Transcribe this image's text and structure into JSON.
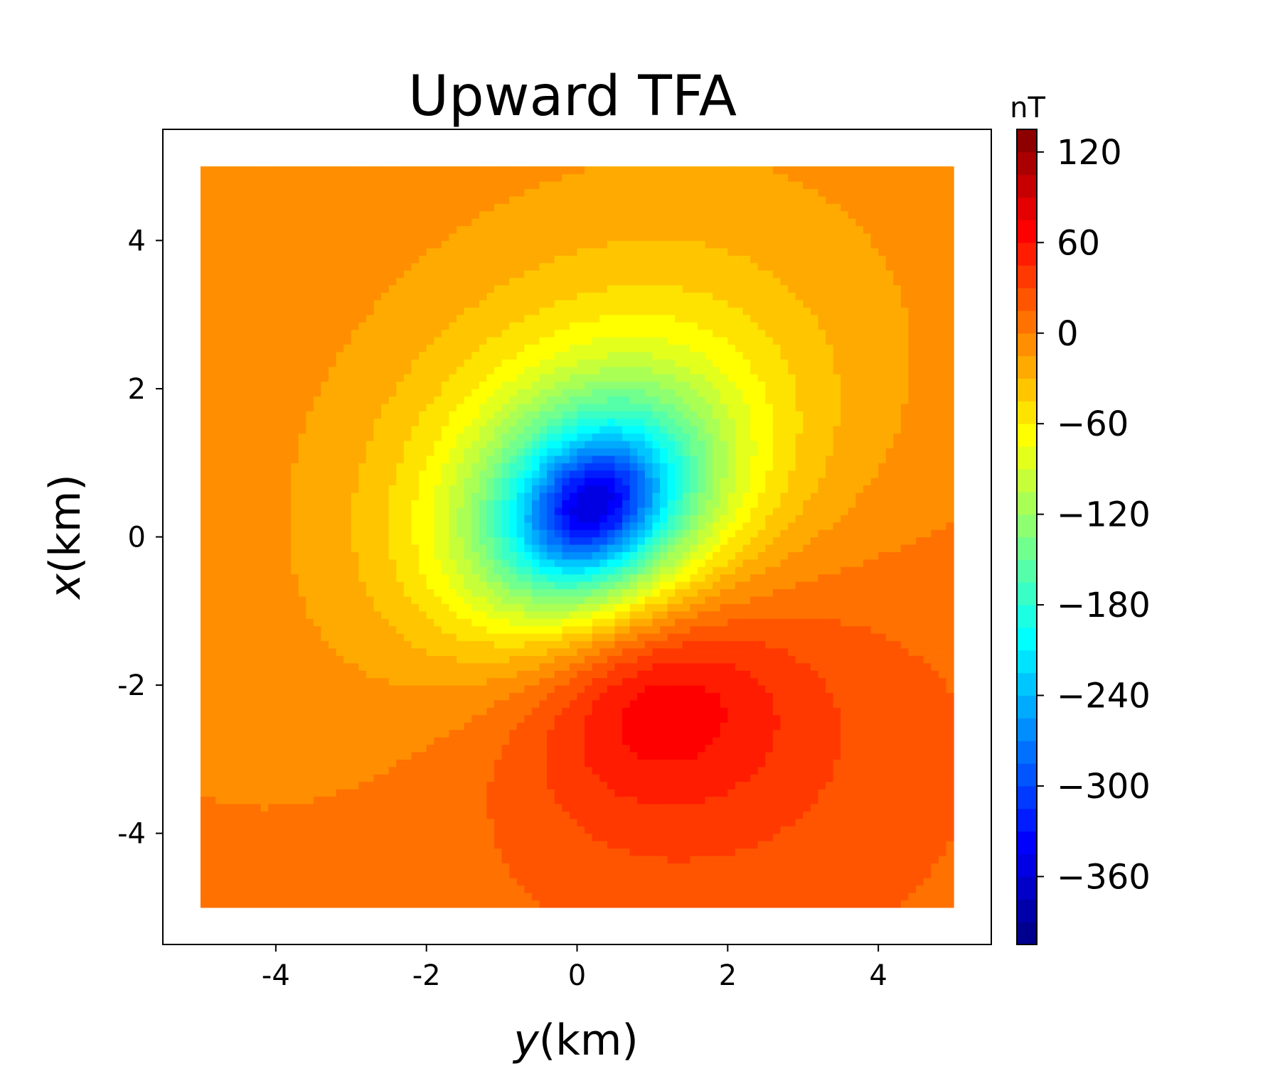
{
  "chart_data": {
    "type": "heatmap",
    "subtype": "filled-contour",
    "title": "Upward TFA",
    "xlabel_italic": "y",
    "xlabel_unit": "(km)",
    "ylabel_italic": "x",
    "ylabel_unit": "(km)",
    "x_axis": {
      "lim": [
        -5.5,
        5.5
      ],
      "ticks": [
        -4,
        -2,
        0,
        2,
        4
      ],
      "tick_labels": [
        "-4",
        "-2",
        "0",
        "2",
        "4"
      ]
    },
    "y_axis": {
      "lim": [
        -5.5,
        5.5
      ],
      "ticks": [
        -4,
        -2,
        0,
        2,
        4
      ],
      "tick_labels": [
        "-4",
        "-2",
        "0",
        "2",
        "4"
      ]
    },
    "data_extent": {
      "y": [
        -5,
        5
      ],
      "x": [
        -5,
        5
      ]
    },
    "colormap": "jet",
    "colorbar": {
      "unit": "nT",
      "range": [
        -405,
        135
      ],
      "levels_step": 15,
      "ticks": [
        120,
        60,
        0,
        -60,
        -120,
        -180,
        -240,
        -300,
        -360
      ],
      "tick_labels": [
        "120",
        "60",
        "0",
        "−60",
        "−120",
        "−180",
        "−240",
        "−300",
        "−360"
      ]
    },
    "field": {
      "description_free": true,
      "anomalies": [
        {
          "kind": "negative",
          "y": 0.2,
          "x": 0.4,
          "min_value": -405
        },
        {
          "kind": "positive",
          "y": 0.9,
          "x": -2.0,
          "max_value": 132
        }
      ],
      "background_value": 5
    }
  }
}
